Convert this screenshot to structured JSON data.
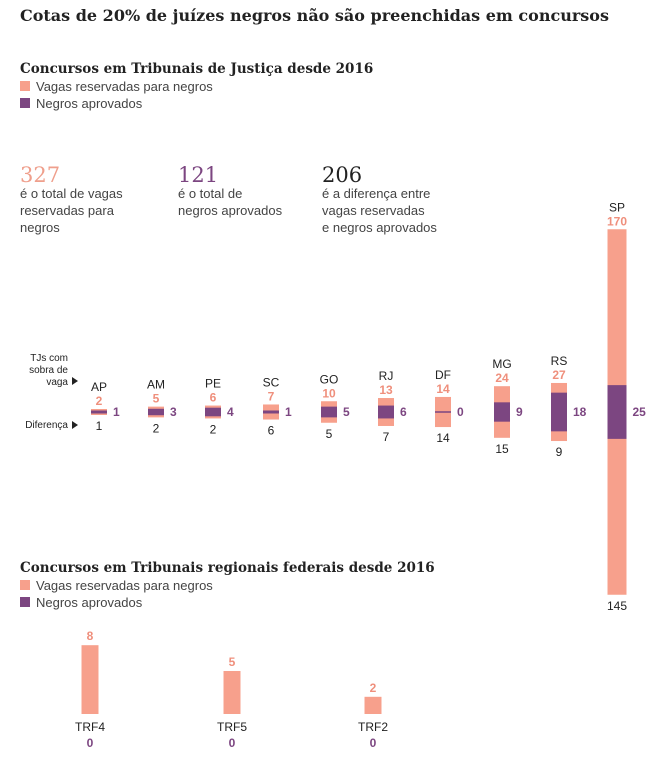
{
  "title": "Cotas de 20% de juízes negros não são preenchidas em concursos",
  "colors": {
    "reserved": "#f7a08c",
    "approved": "#7c4681",
    "text": "#222222",
    "reserved_text": "#ef8f7c"
  },
  "legend": {
    "reserved": "Vagas reservadas para negros",
    "approved": "Negros aprovados"
  },
  "stats": [
    {
      "value": "327",
      "text": [
        "é o total de vagas",
        "reservadas para",
        "negros"
      ],
      "color": "#ef9f8c"
    },
    {
      "value": "121",
      "text": [
        "é o total de",
        "negros aprovados"
      ],
      "color": "#7c4681"
    },
    {
      "value": "206",
      "text": [
        "é a diferença entre",
        "vagas reservadas",
        "e negros aprovados"
      ],
      "color": "#222222"
    }
  ],
  "row_labels": {
    "sobra": [
      "TJs com",
      "sobra de",
      "vaga"
    ],
    "diferenca": "Diferença"
  },
  "chart_data": [
    {
      "type": "bar",
      "title": "Concursos em Tribunais de Justiça desde 2016",
      "legend_position": "top-left",
      "categories": [
        "AP",
        "AM",
        "PE",
        "SC",
        "GO",
        "RJ",
        "DF",
        "MG",
        "RS",
        "SP"
      ],
      "series": [
        {
          "name": "Vagas reservadas para negros",
          "values": [
            2,
            5,
            6,
            7,
            10,
            13,
            14,
            24,
            27,
            170
          ]
        },
        {
          "name": "Negros aprovados",
          "values": [
            1,
            3,
            4,
            1,
            5,
            6,
            0,
            9,
            18,
            25
          ]
        }
      ],
      "difference": [
        1,
        2,
        2,
        6,
        5,
        7,
        14,
        15,
        9,
        145
      ]
    },
    {
      "type": "bar",
      "title": "Concursos em Tribunais regionais federais desde 2016",
      "legend_position": "top-left",
      "categories": [
        "TRF4",
        "TRF5",
        "TRF2"
      ],
      "series": [
        {
          "name": "Vagas reservadas para negros",
          "values": [
            8,
            5,
            2
          ]
        },
        {
          "name": "Negros aprovados",
          "values": [
            0,
            0,
            0
          ]
        }
      ]
    }
  ]
}
